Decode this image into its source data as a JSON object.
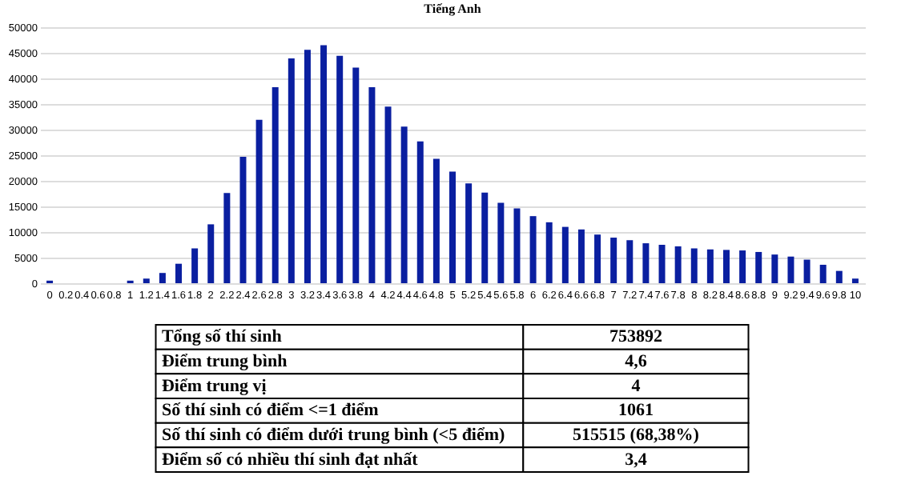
{
  "chart_data": {
    "type": "bar",
    "title": "Tiếng Anh",
    "categories": [
      "0",
      "0.2",
      "0.4",
      "0.6",
      "0.8",
      "1",
      "1.2",
      "1.4",
      "1.6",
      "1.8",
      "2",
      "2.2",
      "2.4",
      "2.6",
      "2.8",
      "3",
      "3.2",
      "3.4",
      "3.6",
      "3.8",
      "4",
      "4.2",
      "4.4",
      "4.6",
      "4.8",
      "5",
      "5.2",
      "5.4",
      "5.6",
      "5.8",
      "6",
      "6.2",
      "6.4",
      "6.6",
      "6.8",
      "7",
      "7.2",
      "7.4",
      "7.6",
      "7.8",
      "8",
      "8.2",
      "8.4",
      "8.6",
      "8.8",
      "9",
      "9.2",
      "9.4",
      "9.6",
      "9.8",
      "10"
    ],
    "values": [
      500,
      0,
      0,
      0,
      0,
      500,
      900,
      2000,
      3800,
      6800,
      11500,
      17600,
      24700,
      31900,
      38300,
      43900,
      45600,
      46500,
      44400,
      42100,
      38300,
      34500,
      30600,
      27700,
      24300,
      21800,
      19500,
      17700,
      15700,
      14600,
      13100,
      11900,
      11000,
      10500,
      9500,
      8900,
      8400,
      7800,
      7500,
      7200,
      6800,
      6600,
      6500,
      6400,
      6100,
      5600,
      5200,
      4600,
      3600,
      2400,
      900
    ],
    "color": "#0a1fa0",
    "ylim": [
      0,
      50000
    ],
    "yticks": [
      0,
      5000,
      10000,
      15000,
      20000,
      25000,
      30000,
      35000,
      40000,
      45000,
      50000
    ],
    "grid": "y",
    "annotations": [
      "Tổng số thí sinh",
      "753892",
      "Điểm trung bình",
      "4,6",
      "Điểm trung vị",
      "4",
      "Số thí sinh có điểm <=1 điểm",
      "1061",
      "Số thí sinh có điểm dưới trung bình (<5 điểm)",
      "515515 (68,38%)",
      "Điểm số có nhiều thí sinh đạt nhất",
      "3,4"
    ]
  }
}
